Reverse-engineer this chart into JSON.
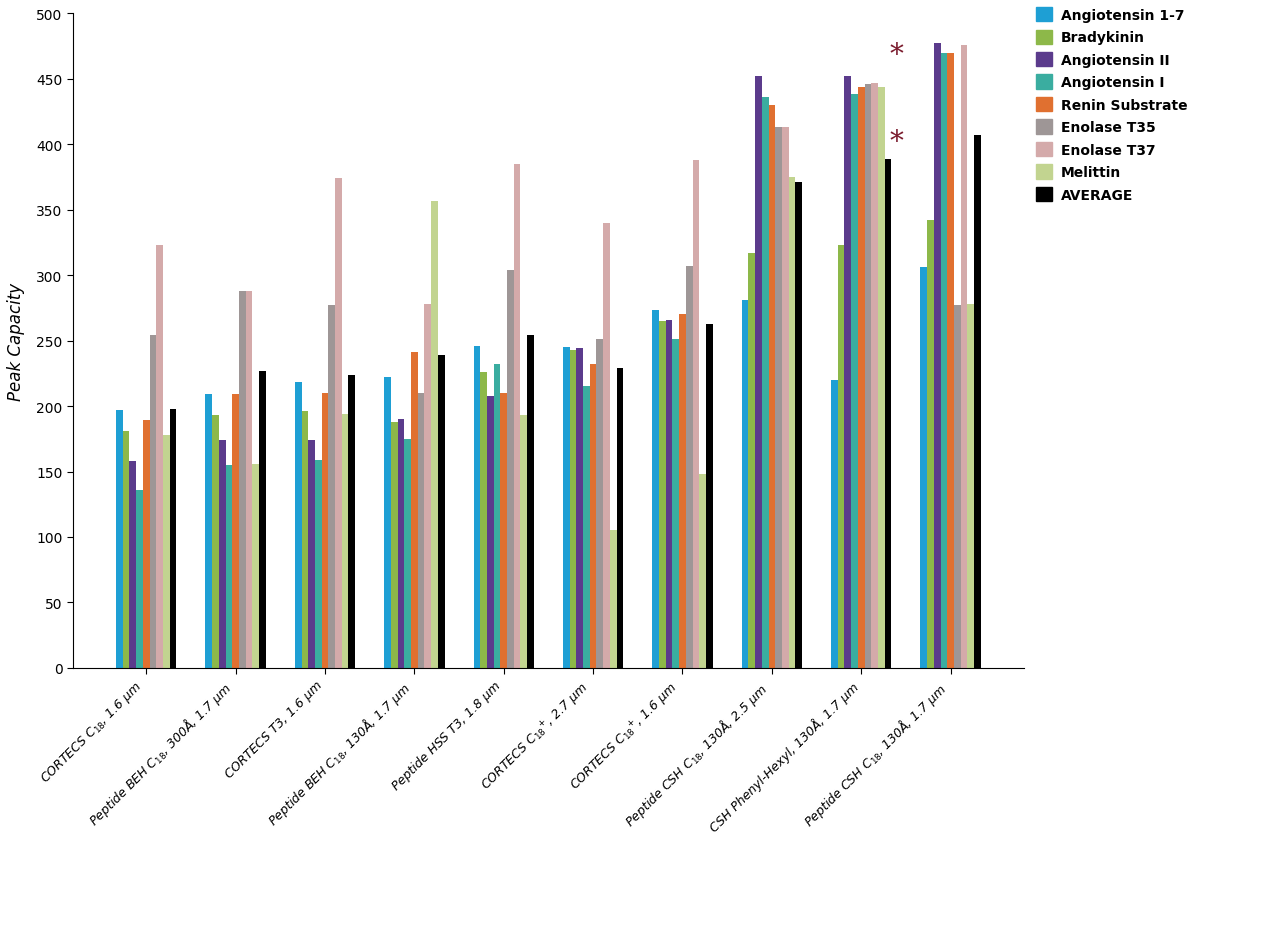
{
  "categories": [
    "CORTECS C$_{18}$, 1.6 μm",
    "Peptide BEH C$_{18}$, 300Å, 1.7 μm",
    "CORTECS T3, 1.6 μm",
    "Peptide BEH C$_{18}$, 130Å, 1.7 μm",
    "Peptide HSS T3, 1.8 μm",
    "CORTECS C$_{18}$$^{+}$, 2.7 μm",
    "CORTECS C$_{18}$$^{+}$, 1.6 μm",
    "Peptide CSH C$_{18}$, 130Å, 2.5 μm",
    "CSH Phenyl-Hexyl, 130Å, 1.7 μm",
    "Peptide CSH C$_{18}$, 130Å, 1.7 μm"
  ],
  "series": {
    "Angiotensin 1-7": [
      197,
      209,
      218,
      222,
      246,
      245,
      273,
      281,
      220,
      306
    ],
    "Bradykinin": [
      181,
      193,
      196,
      188,
      226,
      243,
      265,
      317,
      323,
      342
    ],
    "Angiotensin II": [
      158,
      174,
      174,
      190,
      208,
      244,
      266,
      452,
      452,
      477
    ],
    "Angiotensin I": [
      136,
      155,
      159,
      175,
      232,
      215,
      251,
      436,
      438,
      470
    ],
    "Renin Substrate": [
      189,
      209,
      210,
      241,
      210,
      232,
      270,
      430,
      444,
      470
    ],
    "Enolase T35": [
      254,
      288,
      277,
      210,
      304,
      251,
      307,
      413,
      446,
      277
    ],
    "Enolase T37": [
      323,
      288,
      374,
      278,
      385,
      340,
      388,
      413,
      447,
      476
    ],
    "Melittin": [
      178,
      156,
      194,
      357,
      193,
      105,
      148,
      375,
      444,
      278
    ],
    "AVERAGE": [
      198,
      227,
      224,
      239,
      254,
      229,
      263,
      371,
      389,
      407
    ]
  },
  "colors": {
    "Angiotensin 1-7": "#1E9FD4",
    "Bradykinin": "#8DB849",
    "Angiotensin II": "#5B3B8C",
    "Angiotensin I": "#3AADA0",
    "Renin Substrate": "#E07030",
    "Enolase T35": "#9E9696",
    "Enolase T37": "#D4AAAA",
    "Melittin": "#C2D490",
    "AVERAGE": "#000000"
  },
  "ylabel": "Peak Capacity",
  "ylim": [
    0,
    500
  ],
  "yticks": [
    0,
    50,
    100,
    150,
    200,
    250,
    300,
    350,
    400,
    450,
    500
  ],
  "star_indices": [
    8,
    9
  ],
  "star_color": "#7B1C2E"
}
